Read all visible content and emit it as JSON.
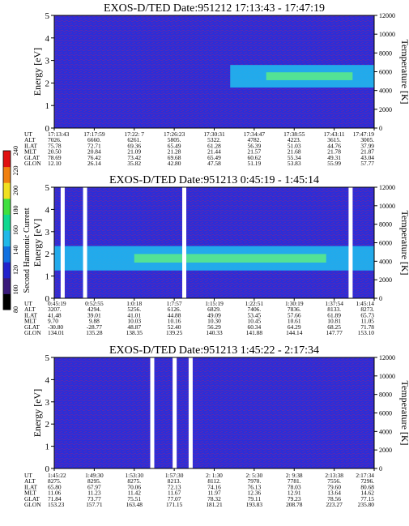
{
  "colors": {
    "background_field": "#2a2ed8",
    "hot_band": "#20c0f0",
    "band_core": "#60f080",
    "noise": "#b01c6e",
    "white_gap": "#ffffff"
  },
  "colorbar": {
    "label": "Second Harmonic Current",
    "ticks": [
      "80",
      "100",
      "120",
      "140",
      "160",
      "180",
      "200",
      "220",
      "240"
    ],
    "colors": [
      "#000000",
      "#3a1a7a",
      "#2222cc",
      "#1070e0",
      "#20b8e8",
      "#10d890",
      "#40e040",
      "#f0e020",
      "#f08010",
      "#e01010"
    ]
  },
  "chart_data": [
    {
      "type": "heatmap",
      "title": "EXOS-D/TED   Date:951212  17:13:43 - 17:47:19",
      "ylabel": "Energy [eV]",
      "y2label": "Temperature [K]",
      "ylim": [
        0,
        5
      ],
      "y2lim": [
        0,
        12000
      ],
      "yticks": [
        "0",
        "1",
        "2",
        "3",
        "4",
        "5"
      ],
      "y2ticks": [
        "0",
        "2000",
        "4000",
        "6000",
        "8000",
        "10000",
        "12000"
      ],
      "band": {
        "start_fraction": 0.55,
        "center_eV": 2.3,
        "width_eV": 1.0
      },
      "gaps": [],
      "orbit_table": {
        "labels": [
          "UT",
          "ALT",
          "ILAT",
          "MLT",
          "GLAT",
          "GLON"
        ],
        "columns": [
          [
            "17:13:43",
            "7026.",
            "75.78",
            "20.50",
            "78.69",
            "12.10"
          ],
          [
            "17:17:59",
            "6660.",
            "72.71",
            "20.84",
            "76.42",
            "26.14"
          ],
          [
            "17:22: 7",
            "6261.",
            "69.36",
            "21.09",
            "73.42",
            "35.82"
          ],
          [
            "17:26:23",
            "5805.",
            "65.49",
            "21.28",
            "69.68",
            "42.80"
          ],
          [
            "17:30:31",
            "5322.",
            "61.28",
            "21.44",
            "65.49",
            "47.58"
          ],
          [
            "17:34:47",
            "4782.",
            "56.39",
            "21.57",
            "60.62",
            "51.19"
          ],
          [
            "17:38:55",
            "4223.",
            "51.03",
            "21.68",
            "55.34",
            "53.83"
          ],
          [
            "17:43:11",
            "3615.",
            "44.76",
            "21.78",
            "49.31",
            "55.99"
          ],
          [
            "17:47:19",
            "3005.",
            "37.99",
            "21.87",
            "43.04",
            "57.77"
          ]
        ]
      }
    },
    {
      "type": "heatmap",
      "title": "EXOS-D/TED   Date:951213   0:45:19 - 1:45:14",
      "ylabel": "Energy [eV]",
      "y2label": "Temperature [K]",
      "ylim": [
        0,
        5
      ],
      "y2lim": [
        0,
        12000
      ],
      "yticks": [
        "0",
        "1",
        "2",
        "3",
        "4",
        "5"
      ],
      "y2ticks": [
        "0",
        "2000",
        "4000",
        "6000",
        "8000",
        "10000",
        "12000"
      ],
      "band": {
        "start_fraction": 0.0,
        "center_eV": 1.8,
        "width_eV": 1.1
      },
      "gaps": [
        0.02,
        0.09,
        0.4,
        0.92
      ],
      "orbit_table": {
        "labels": [
          "UT",
          "ALT",
          "ILAT",
          "MLT",
          "GLAT",
          "GLON"
        ],
        "columns": [
          [
            "0:45:19",
            "3207.",
            "41.48",
            "9.70",
            "-30.80",
            "134.01"
          ],
          [
            "0:52:55",
            "4294.",
            "39.01",
            "9.88",
            "-28.77",
            "135.28"
          ],
          [
            "1:0:18",
            "5256.",
            "41.01",
            "10.03",
            "48.87",
            "138.35"
          ],
          [
            "1:7:57",
            "6126.",
            "44.88",
            "10.16",
            "52.40",
            "139.25"
          ],
          [
            "1:15:19",
            "6829.",
            "49.09",
            "10.30",
            "56.29",
            "140.33"
          ],
          [
            "1:22:51",
            "7406.",
            "53.45",
            "10.45",
            "60.34",
            "141.88"
          ],
          [
            "1:30:19",
            "7836.",
            "57.66",
            "10.61",
            "64.29",
            "144.14"
          ],
          [
            "1:37:54",
            "8133.",
            "61.89",
            "10.81",
            "68.25",
            "147.77"
          ],
          [
            "1:45:14",
            "8273.",
            "65.73",
            "11.05",
            "71.78",
            "153.10"
          ]
        ]
      }
    },
    {
      "type": "heatmap",
      "title": "EXOS-D/TED   Date:951213   1:45:22 - 2:17:34",
      "ylabel": "Energy [eV]",
      "y2label": "Temperature [K]",
      "ylim": [
        0,
        5
      ],
      "y2lim": [
        0,
        12000
      ],
      "yticks": [
        "0",
        "1",
        "2",
        "3",
        "4",
        "5"
      ],
      "y2ticks": [
        "0",
        "2000",
        "4000",
        "6000",
        "8000",
        "10000",
        "12000"
      ],
      "band": null,
      "gaps": [
        0.3,
        0.37,
        0.42
      ],
      "orbit_table": {
        "labels": [
          "UT",
          "ALT",
          "ILAT",
          "MLT",
          "GLAT",
          "GLON"
        ],
        "columns": [
          [
            "1:45:22",
            "8275.",
            "65.80",
            "11.06",
            "71.84",
            "153.23"
          ],
          [
            "1:49:30",
            "8295.",
            "67.97",
            "11.23",
            "73.77",
            "157.71"
          ],
          [
            "1:53:30",
            "8275.",
            "70.06",
            "11.42",
            "75.51",
            "163.48"
          ],
          [
            "1:57:30",
            "8213.",
            "72.13",
            "11.67",
            "77.07",
            "171.15"
          ],
          [
            "2: 1:30",
            "8112.",
            "74.16",
            "11.97",
            "78.32",
            "181.21"
          ],
          [
            "2: 5:30",
            "7970.",
            "76.13",
            "12.36",
            "79.11",
            "193.83"
          ],
          [
            "2: 9:38",
            "7781.",
            "78.03",
            "12.91",
            "79.23",
            "208.78"
          ],
          [
            "2:13:38",
            "7556.",
            "79.60",
            "13.64",
            "78.56",
            "223.27"
          ],
          [
            "2:17:34",
            "7296.",
            "80.68",
            "14.62",
            "77.15",
            "235.80"
          ]
        ]
      }
    }
  ]
}
